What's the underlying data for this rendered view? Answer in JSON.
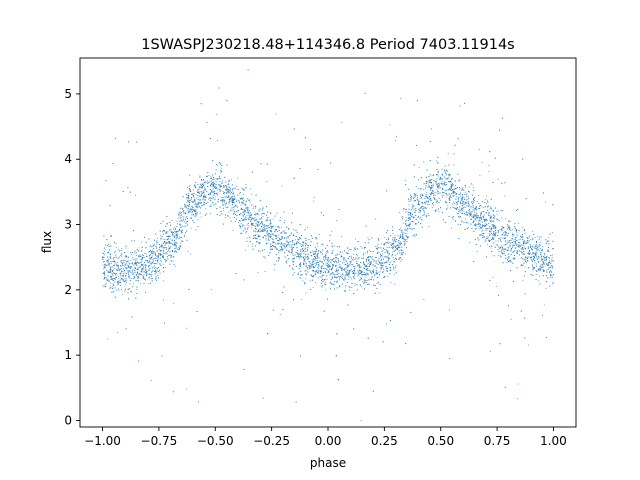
{
  "chart_data": {
    "type": "scatter",
    "title": "1SWASPJ230218.48+114346.8 Period 7403.11914s",
    "xlabel": "phase",
    "ylabel": "flux",
    "xlim": [
      -1.1,
      1.1
    ],
    "ylim": [
      -0.1,
      5.55
    ],
    "xticks": [
      "−1.00",
      "−0.75",
      "−0.50",
      "−0.25",
      "0.00",
      "0.25",
      "0.50",
      "0.75",
      "1.00"
    ],
    "xtick_values": [
      -1.0,
      -0.75,
      -0.5,
      -0.25,
      0.0,
      0.25,
      0.5,
      0.75,
      1.0
    ],
    "yticks": [
      "0",
      "1",
      "2",
      "3",
      "4",
      "5"
    ],
    "ytick_values": [
      0,
      1,
      2,
      3,
      4,
      5
    ],
    "grid": false,
    "legend": "none",
    "point_color": "#1f77b4",
    "series": [
      {
        "phase_range": [
          -1.0,
          1.0
        ],
        "trend_phase": [
          -1.0,
          -0.9,
          -0.8,
          -0.7,
          -0.6,
          -0.55,
          -0.5,
          -0.45,
          -0.4,
          -0.3,
          -0.2,
          -0.1,
          0.0,
          0.1,
          0.2,
          0.3,
          0.4,
          0.45,
          0.5,
          0.55,
          0.6,
          0.7,
          0.8,
          0.9,
          1.0
        ],
        "trend_flux": [
          2.35,
          2.3,
          2.4,
          2.7,
          3.3,
          3.5,
          3.55,
          3.45,
          3.25,
          2.95,
          2.7,
          2.5,
          2.35,
          2.3,
          2.35,
          2.65,
          3.3,
          3.5,
          3.6,
          3.5,
          3.3,
          3.0,
          2.75,
          2.55,
          2.4
        ]
      }
    ]
  }
}
